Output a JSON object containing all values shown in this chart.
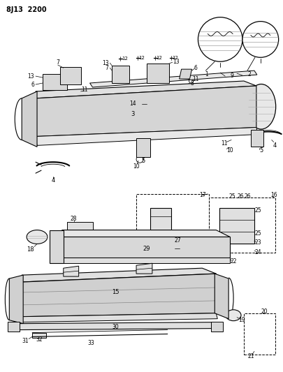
{
  "title": "8J13  2200",
  "bg_color": "#ffffff",
  "lc": "#000000",
  "figsize": [
    4.06,
    5.33
  ],
  "dpi": 100
}
